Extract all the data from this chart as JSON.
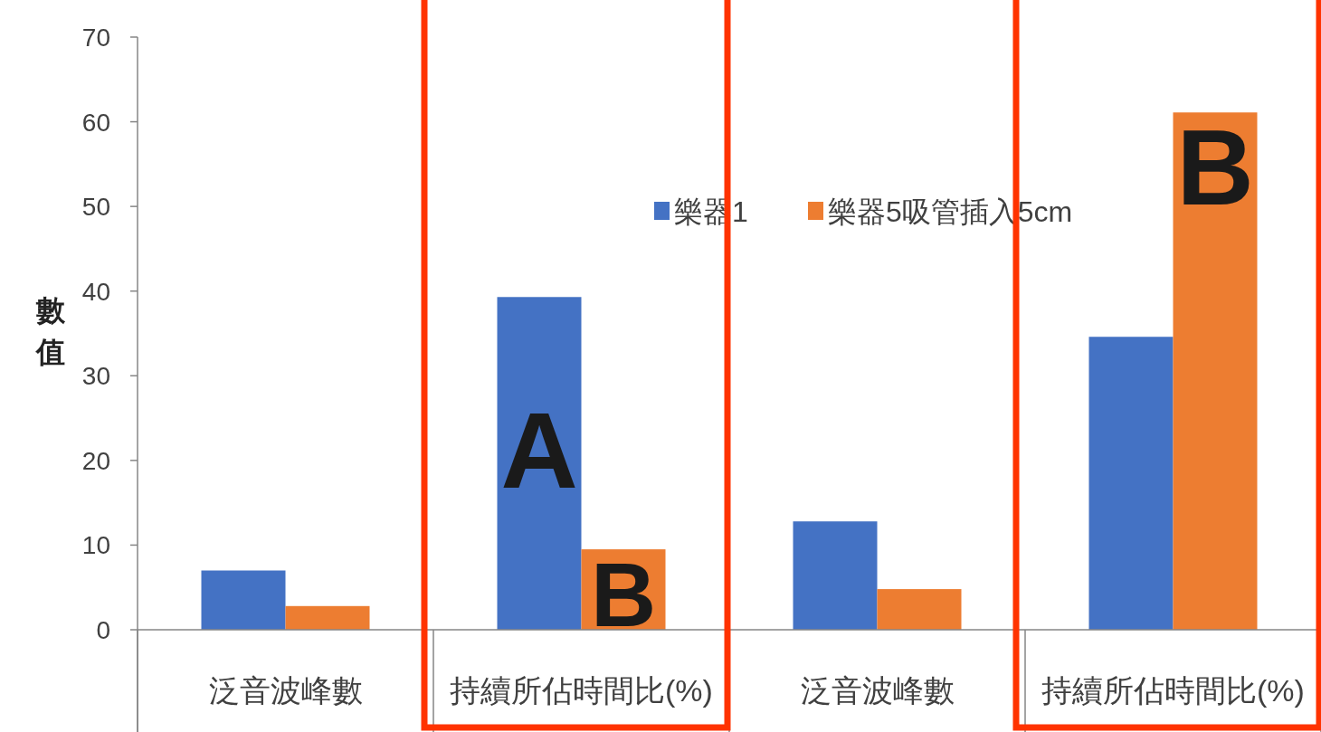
{
  "chart_data": {
    "type": "bar",
    "ylabel": "數值",
    "categories": [
      "泛音波峰數",
      "持續所佔時間比(%)",
      "泛音波峰數",
      "持續所佔時間比(%)"
    ],
    "series": [
      {
        "name": "樂器1",
        "color": "#4472c4",
        "values": [
          7,
          39.3,
          12.8,
          34.6
        ]
      },
      {
        "name": "樂器5吸管插入5cm",
        "color": "#ed7d31",
        "values": [
          2.8,
          9.5,
          4.8,
          61.1
        ]
      }
    ],
    "ylim": [
      0,
      70
    ],
    "yticks": [
      0,
      10,
      20,
      30,
      40,
      50,
      60,
      70
    ],
    "grid": false,
    "legend": "top",
    "annotations": [
      "A",
      "B",
      "B"
    ]
  }
}
